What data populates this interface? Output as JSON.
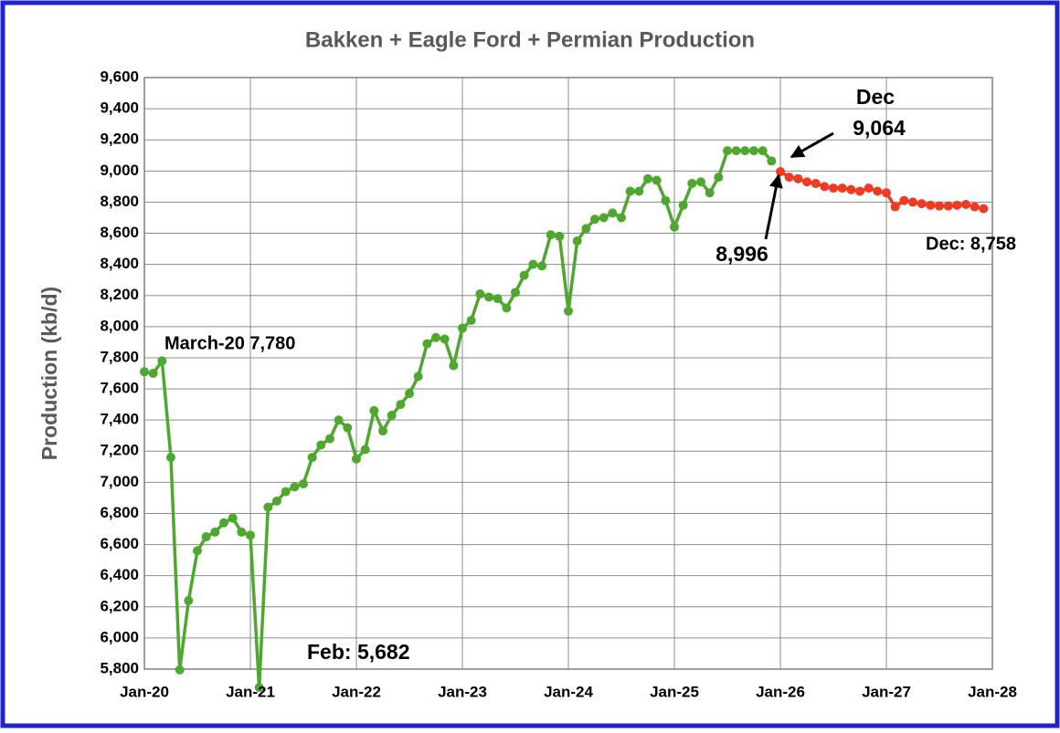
{
  "chart_data": {
    "type": "line",
    "title": "Bakken + Eagle Ford + Permian Production",
    "ylabel": "Production (kb/d)",
    "xlim": [
      2020,
      2028
    ],
    "xticks": [
      {
        "value": 2020,
        "label": "Jan-20"
      },
      {
        "value": 2021,
        "label": "Jan-21"
      },
      {
        "value": 2022,
        "label": "Jan-22"
      },
      {
        "value": 2023,
        "label": "Jan-23"
      },
      {
        "value": 2024,
        "label": "Jan-24"
      },
      {
        "value": 2025,
        "label": "Jan-25"
      },
      {
        "value": 2026,
        "label": "Jan-26"
      },
      {
        "value": 2027,
        "label": "Jan-27"
      },
      {
        "value": 2028,
        "label": "Jan-28"
      }
    ],
    "ylim": [
      5800,
      9600
    ],
    "yticks": [
      {
        "value": 5800,
        "label": "5,800"
      },
      {
        "value": 6000,
        "label": "6,000"
      },
      {
        "value": 6200,
        "label": "6,200"
      },
      {
        "value": 6400,
        "label": "6,400"
      },
      {
        "value": 6600,
        "label": "6,600"
      },
      {
        "value": 6800,
        "label": "6,800"
      },
      {
        "value": 7000,
        "label": "7,000"
      },
      {
        "value": 7200,
        "label": "7,200"
      },
      {
        "value": 7400,
        "label": "7,400"
      },
      {
        "value": 7600,
        "label": "7,600"
      },
      {
        "value": 7800,
        "label": "7,800"
      },
      {
        "value": 8000,
        "label": "8,000"
      },
      {
        "value": 8200,
        "label": "8,200"
      },
      {
        "value": 8400,
        "label": "8,400"
      },
      {
        "value": 8600,
        "label": "8,600"
      },
      {
        "value": 8800,
        "label": "8,800"
      },
      {
        "value": 9000,
        "label": "9,000"
      },
      {
        "value": 9200,
        "label": "9,200"
      },
      {
        "value": 9400,
        "label": "9,400"
      },
      {
        "value": 9600,
        "label": "9,600"
      }
    ],
    "grid": true,
    "series": [
      {
        "color": "#4ea72e",
        "x": [
          2020,
          2020.0833,
          2020.1667,
          2020.25,
          2020.3333,
          2020.4167,
          2020.5,
          2020.5833,
          2020.6667,
          2020.75,
          2020.8333,
          2020.9167,
          2021,
          2021.0833,
          2021.1667,
          2021.25,
          2021.3333,
          2021.4167,
          2021.5,
          2021.5833,
          2021.6667,
          2021.75,
          2021.8333,
          2021.9167,
          2022,
          2022.0833,
          2022.1667,
          2022.25,
          2022.3333,
          2022.4167,
          2022.5,
          2022.5833,
          2022.6667,
          2022.75,
          2022.8333,
          2022.9167,
          2023,
          2023.0833,
          2023.1667,
          2023.25,
          2023.3333,
          2023.4167,
          2023.5,
          2023.5833,
          2023.6667,
          2023.75,
          2023.8333,
          2023.9167,
          2024,
          2024.0833,
          2024.1667,
          2024.25,
          2024.3333,
          2024.4167,
          2024.5,
          2024.5833,
          2024.6667,
          2024.75,
          2024.8333,
          2024.9167,
          2025,
          2025.0833,
          2025.1667,
          2025.25,
          2025.3333,
          2025.4167,
          2025.5,
          2025.5833,
          2025.6667,
          2025.75,
          2025.8333,
          2025.9167
        ],
        "values": [
          7710,
          7700,
          7780,
          7160,
          5795,
          6240,
          6560,
          6650,
          6680,
          6740,
          6770,
          6680,
          6660,
          5682,
          6840,
          6880,
          6940,
          6970,
          6990,
          7160,
          7240,
          7280,
          7400,
          7350,
          7150,
          7210,
          7460,
          7330,
          7430,
          7500,
          7570,
          7680,
          7890,
          7930,
          7920,
          7750,
          7990,
          8040,
          8210,
          8190,
          8180,
          8120,
          8220,
          8330,
          8400,
          8390,
          8590,
          8580,
          8100,
          8550,
          8630,
          8690,
          8700,
          8730,
          8700,
          8870,
          8870,
          8950,
          8940,
          8810,
          8640,
          8780,
          8920,
          8930,
          8860,
          8960,
          9130,
          9130,
          9130,
          9130,
          9130,
          9064
        ]
      },
      {
        "color": "#ee3b22",
        "x": [
          2026,
          2026.0833,
          2026.1667,
          2026.25,
          2026.3333,
          2026.4167,
          2026.5,
          2026.5833,
          2026.6667,
          2026.75,
          2026.8333,
          2026.9167,
          2027,
          2027.0833,
          2027.1667,
          2027.25,
          2027.3333,
          2027.4167,
          2027.5,
          2027.5833,
          2027.6667,
          2027.75,
          2027.8333,
          2027.9167
        ],
        "values": [
          8996,
          8960,
          8950,
          8930,
          8920,
          8900,
          8890,
          8890,
          8880,
          8870,
          8890,
          8870,
          8860,
          8770,
          8810,
          8800,
          8790,
          8780,
          8775,
          8775,
          8780,
          8785,
          8770,
          8758
        ]
      }
    ],
    "annotations": [
      "March-20 7,780",
      "Feb: 5,682",
      "Dec",
      "9,064",
      "8,996",
      "Dec: 8,758"
    ]
  }
}
